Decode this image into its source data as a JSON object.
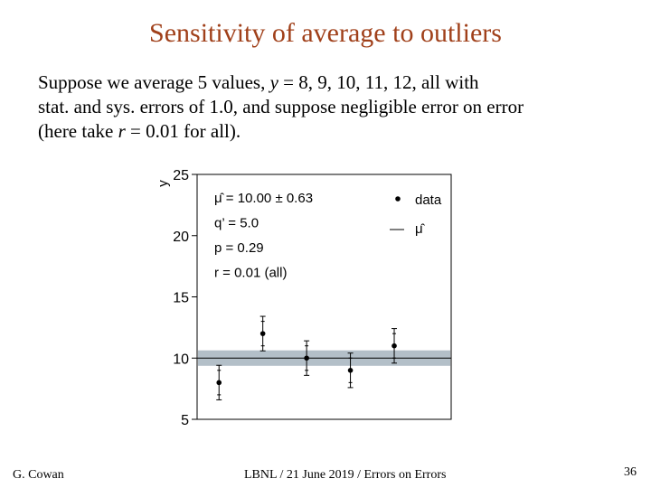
{
  "slide": {
    "title": "Sensitivity of average to outliers",
    "body_lines": [
      {
        "parts": [
          {
            "t": "Suppose we average 5 values, ",
            "i": false
          },
          {
            "t": "y",
            "i": true
          },
          {
            "t": " = 8, 9, 10, 11, 12, all with",
            "i": false
          }
        ]
      },
      {
        "parts": [
          {
            "t": "stat. and sys. errors of 1.0, and suppose negligible error on error",
            "i": false
          }
        ]
      },
      {
        "parts": [
          {
            "t": "(here take ",
            "i": false
          },
          {
            "t": "r",
            "i": true
          },
          {
            "t": " = 0.01 for all).",
            "i": false
          }
        ]
      }
    ]
  },
  "footer": {
    "author": "G. Cowan",
    "center": "LBNL / 21 June 2019 / Errors on Errors",
    "page": "36"
  },
  "chart_data": {
    "type": "scatter",
    "ylabel": "y",
    "xlim": [
      0.5,
      6.3
    ],
    "ylim": [
      5,
      25
    ],
    "yticks": [
      5,
      10,
      15,
      20,
      25
    ],
    "x": [
      1,
      2,
      3,
      4,
      5
    ],
    "y": [
      8,
      12,
      10,
      9,
      11
    ],
    "stat_err": [
      1.0,
      1.0,
      1.0,
      1.0,
      1.0
    ],
    "total_err": [
      1.41,
      1.41,
      1.41,
      1.41,
      1.41
    ],
    "mu_hat": 10.0,
    "mu_err": 0.63,
    "annotations": [
      "μ̂ = 10.00 ± 0.63",
      "q’ = 5.0",
      "p = 0.29",
      "r = 0.01 (all)"
    ],
    "legend": {
      "position": "top-right",
      "entries": [
        {
          "label": "data",
          "symbol": "point"
        },
        {
          "label": "μ̂",
          "symbol": "line"
        }
      ]
    },
    "colors": {
      "band": "#b3bfc8",
      "marks": "#000000"
    }
  }
}
